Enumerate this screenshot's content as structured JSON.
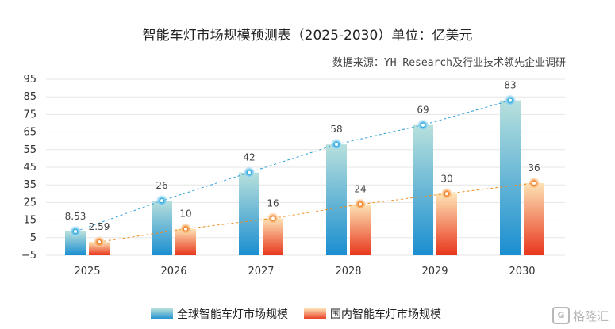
{
  "header": {
    "title": "智能车灯市场规模预测表（2025-2030）单位：亿美元",
    "source": "数据来源：YH Research及行业技术领先企业调研"
  },
  "watermark": {
    "text": "格隆汇",
    "icon": "gelonghui-logo-icon"
  },
  "colors": {
    "global_top": "#b8e0dc",
    "global_bottom": "#1a8ed0",
    "domestic_top": "#fde3b5",
    "domestic_bottom": "#e8361c",
    "global_line": "#2a9fd8",
    "domestic_line": "#f08a1c",
    "grid": "#e6e6e6"
  },
  "chart_data": {
    "type": "bar",
    "categories": [
      "2025",
      "2026",
      "2027",
      "2028",
      "2029",
      "2030"
    ],
    "series": [
      {
        "name": "全球智能车灯市场规模",
        "values": [
          8.53,
          26,
          42,
          58,
          69,
          83
        ],
        "labels": [
          "8.53",
          "26",
          "42",
          "58",
          "69",
          "83"
        ]
      },
      {
        "name": "国内智能车灯市场规模",
        "values": [
          2.59,
          10,
          16,
          24,
          30,
          36
        ],
        "labels": [
          "2.59",
          "10",
          "16",
          "24",
          "30",
          "36"
        ]
      }
    ],
    "yticks": [
      "95",
      "85",
      "75",
      "65",
      "55",
      "45",
      "35",
      "25",
      "15",
      "5",
      "−5"
    ],
    "ylim": [
      -5,
      95
    ],
    "grid": true,
    "legend": "bottom-center",
    "overlay": "dashed trend lines with markers on bar tops"
  }
}
